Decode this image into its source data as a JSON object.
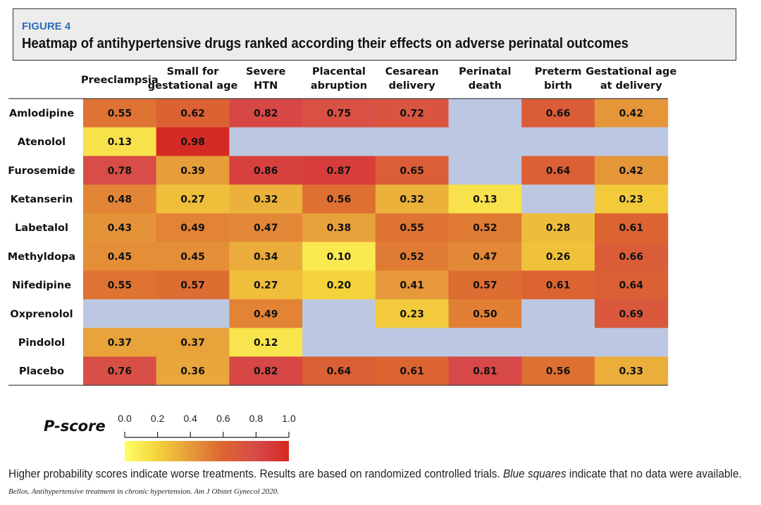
{
  "figure": {
    "label": "FIGURE 4",
    "title": "Heatmap of antihypertensive drugs ranked according their effects on adverse perinatal outcomes"
  },
  "chart_data": {
    "type": "heatmap",
    "columns": [
      [
        "Preeclampsia"
      ],
      [
        "Small for",
        "gestational age"
      ],
      [
        "Severe",
        "HTN"
      ],
      [
        "Placental",
        "abruption"
      ],
      [
        "Cesarean",
        "delivery"
      ],
      [
        "Perinatal",
        "death"
      ],
      [
        "Preterm",
        "birth"
      ],
      [
        "Gestational age",
        "at delivery"
      ]
    ],
    "rows": [
      "Amlodipine",
      "Atenolol",
      "Furosemide",
      "Ketanserin",
      "Labetalol",
      "Methyldopa",
      "Nifedipine",
      "Oxprenolol",
      "Pindolol",
      "Placebo"
    ],
    "values": [
      [
        "0.55",
        "0.62",
        "0.82",
        "0.75",
        "0.72",
        null,
        "0.66",
        "0.42"
      ],
      [
        "0.13",
        "0.98",
        null,
        null,
        null,
        null,
        null,
        null
      ],
      [
        "0.78",
        "0.39",
        "0.86",
        "0.87",
        "0.65",
        null,
        "0.64",
        "0.42"
      ],
      [
        "0.48",
        "0.27",
        "0.32",
        "0.56",
        "0.32",
        "0.13",
        null,
        "0.23"
      ],
      [
        "0.43",
        "0.49",
        "0.47",
        "0.38",
        "0.55",
        "0.52",
        "0.28",
        "0.61"
      ],
      [
        "0.45",
        "0.45",
        "0.34",
        "0.10",
        "0.52",
        "0.47",
        "0.26",
        "0.66"
      ],
      [
        "0.55",
        "0.57",
        "0.27",
        "0.20",
        "0.41",
        "0.57",
        "0.61",
        "0.64"
      ],
      [
        null,
        null,
        "0.49",
        null,
        "0.23",
        "0.50",
        null,
        "0.69"
      ],
      [
        "0.37",
        "0.37",
        "0.12",
        null,
        null,
        null,
        null,
        null
      ],
      [
        "0.76",
        "0.36",
        "0.82",
        "0.64",
        "0.61",
        "0.81",
        "0.56",
        "0.33"
      ]
    ],
    "missing_color": "#bcc8e2",
    "color_scale": {
      "label": "P-score",
      "ticks": [
        "0.0",
        "0.2",
        "0.4",
        "0.6",
        "0.8",
        "1.0"
      ],
      "range": [
        0,
        1
      ],
      "stops": [
        "#ffff66",
        "#f4d23c",
        "#e69b3a",
        "#dc6530",
        "#d74a4a",
        "#d62820"
      ]
    }
  },
  "caption": {
    "part1": "Higher probability scores indicate worse treatments. Results are based on randomized controlled trials. ",
    "emph": "Blue squares",
    "part2": " indicate that no data were available."
  },
  "citation": "Bellos. Antihypertensive treatment in chronic hypertension. Am J Obstet Gynecol 2020."
}
